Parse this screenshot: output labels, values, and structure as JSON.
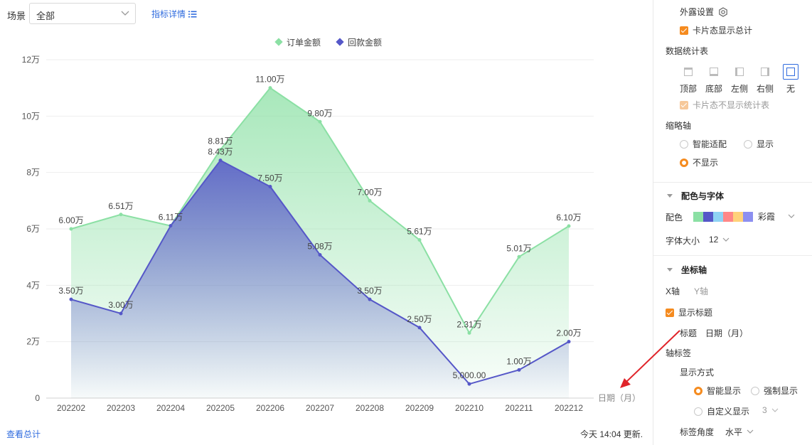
{
  "toolbar": {
    "scene_label": "场景",
    "scene_value": "全部",
    "detail_link": "指标详情"
  },
  "footer": {
    "view_total": "查看总计",
    "update_text": "今天 14:04 更新."
  },
  "chart_data": {
    "type": "area",
    "categories": [
      "202202",
      "202203",
      "202204",
      "202205",
      "202206",
      "202207",
      "202208",
      "202209",
      "202210",
      "202211",
      "202212"
    ],
    "series": [
      {
        "name": "订单金额",
        "color": "#8be0a4",
        "values": [
          60000,
          65100,
          61100,
          88100,
          110000,
          98000,
          70000,
          56100,
          23100,
          50100,
          61000
        ],
        "labels": [
          "6.00万",
          "6.51万",
          "6.11万",
          "8.81万",
          "11.00万",
          "9.80万",
          "7.00万",
          "5.61万",
          "2.31万",
          "5.01万",
          "6.10万"
        ]
      },
      {
        "name": "回款金额",
        "color": "#5557c8",
        "values": [
          35000,
          30000,
          61100,
          84300,
          75000,
          50800,
          35000,
          25000,
          5000,
          10000,
          20000
        ],
        "labels": [
          "3.50万",
          "3.00万",
          "",
          "8.43万",
          "7.50万",
          "5.08万",
          "3.50万",
          "2.50万",
          "5,000.00",
          "1.00万",
          "2.00万"
        ]
      }
    ],
    "y_ticks": [
      "0",
      "2万",
      "4万",
      "6万",
      "8万",
      "10万",
      "12万"
    ],
    "ylim": [
      0,
      120000
    ],
    "xlabel": "日期（月）",
    "legend_position": "top-center",
    "grid": true
  },
  "panel": {
    "exposure_title": "外露设置",
    "card_show_total": "卡片态显示总计",
    "stats_table_title": "数据统计表",
    "positions": [
      "顶部",
      "底部",
      "左侧",
      "右侧",
      "无"
    ],
    "card_hide_stats": "卡片态不显示统计表",
    "thumb_axis_title": "缩略轴",
    "thumb_options": [
      "智能适配",
      "显示",
      "不显示"
    ],
    "color_font_title": "配色与字体",
    "palette_label": "配色",
    "palette_colors": [
      "#8be0a4",
      "#5557c8",
      "#8fd3f4",
      "#ff8787",
      "#ffd27a",
      "#8c8ff0"
    ],
    "palette_name": "彩霞",
    "font_size_label": "字体大小",
    "font_size_value": "12",
    "axis_title": "坐标轴",
    "axis_tabs": [
      "X轴",
      "Y轴"
    ],
    "show_title": "显示标题",
    "title_label": "标题",
    "title_value": "日期（月）",
    "axis_labels_title": "轴标签",
    "display_mode_label": "显示方式",
    "display_modes": [
      "智能显示",
      "强制显示",
      "自定义显示"
    ],
    "custom_value": "3",
    "label_angle_label": "标签角度",
    "label_angle_value": "水平"
  }
}
